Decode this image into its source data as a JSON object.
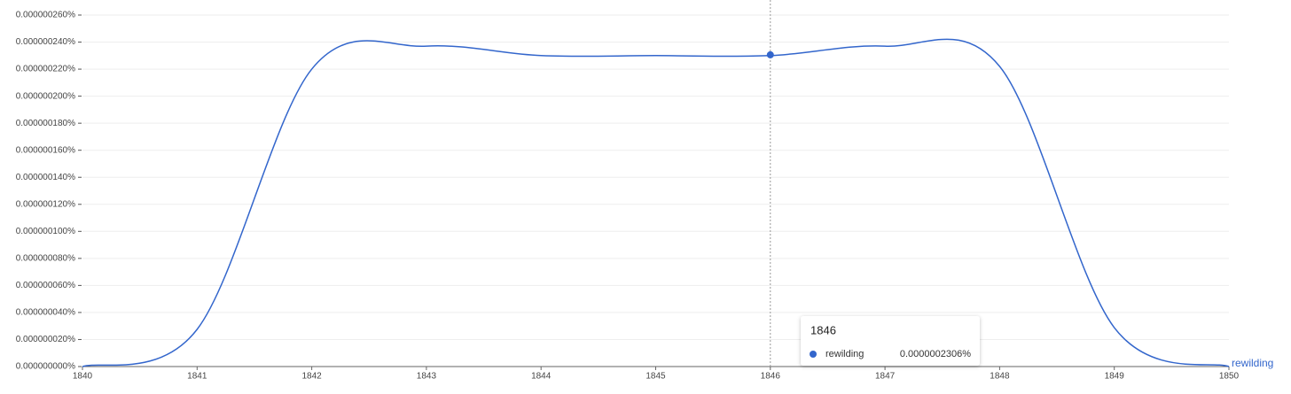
{
  "chart_data": {
    "type": "line",
    "x": [
      1840,
      1841,
      1842,
      1843,
      1844,
      1845,
      1846,
      1847,
      1848,
      1849,
      1850
    ],
    "series": [
      {
        "name": "rewilding",
        "color": "#3366cc",
        "values": [
          0,
          2.75e-08,
          2.2e-07,
          2.37e-07,
          2.3e-07,
          2.3e-07,
          2.3e-07,
          2.37e-07,
          2.22e-07,
          2.88e-08,
          0
        ]
      }
    ],
    "xlim": [
      1840,
      1850
    ],
    "xticks": [
      1840,
      1841,
      1842,
      1843,
      1844,
      1845,
      1846,
      1847,
      1848,
      1849,
      1850
    ],
    "ylim": [
      0,
      2.6e-07
    ],
    "yticks": [
      {
        "value": 0,
        "label": "0.000000000%"
      },
      {
        "value": 2e-08,
        "label": "0.000000020%"
      },
      {
        "value": 4e-08,
        "label": "0.000000040%"
      },
      {
        "value": 6e-08,
        "label": "0.000000060%"
      },
      {
        "value": 8e-08,
        "label": "0.000000080%"
      },
      {
        "value": 1e-07,
        "label": "0.000000100%"
      },
      {
        "value": 1.2e-07,
        "label": "0.000000120%"
      },
      {
        "value": 1.4e-07,
        "label": "0.000000140%"
      },
      {
        "value": 1.6e-07,
        "label": "0.000000160%"
      },
      {
        "value": 1.8e-07,
        "label": "0.000000180%"
      },
      {
        "value": 2e-07,
        "label": "0.000000200%"
      },
      {
        "value": 2.2e-07,
        "label": "0.000000220%"
      },
      {
        "value": 2.4e-07,
        "label": "0.000000240%"
      },
      {
        "value": 2.6e-07,
        "label": "0.000000260%"
      }
    ],
    "grid": true,
    "tooltip": {
      "x": 1846,
      "value": 2.306e-07,
      "label": "0.0000002306%"
    }
  }
}
